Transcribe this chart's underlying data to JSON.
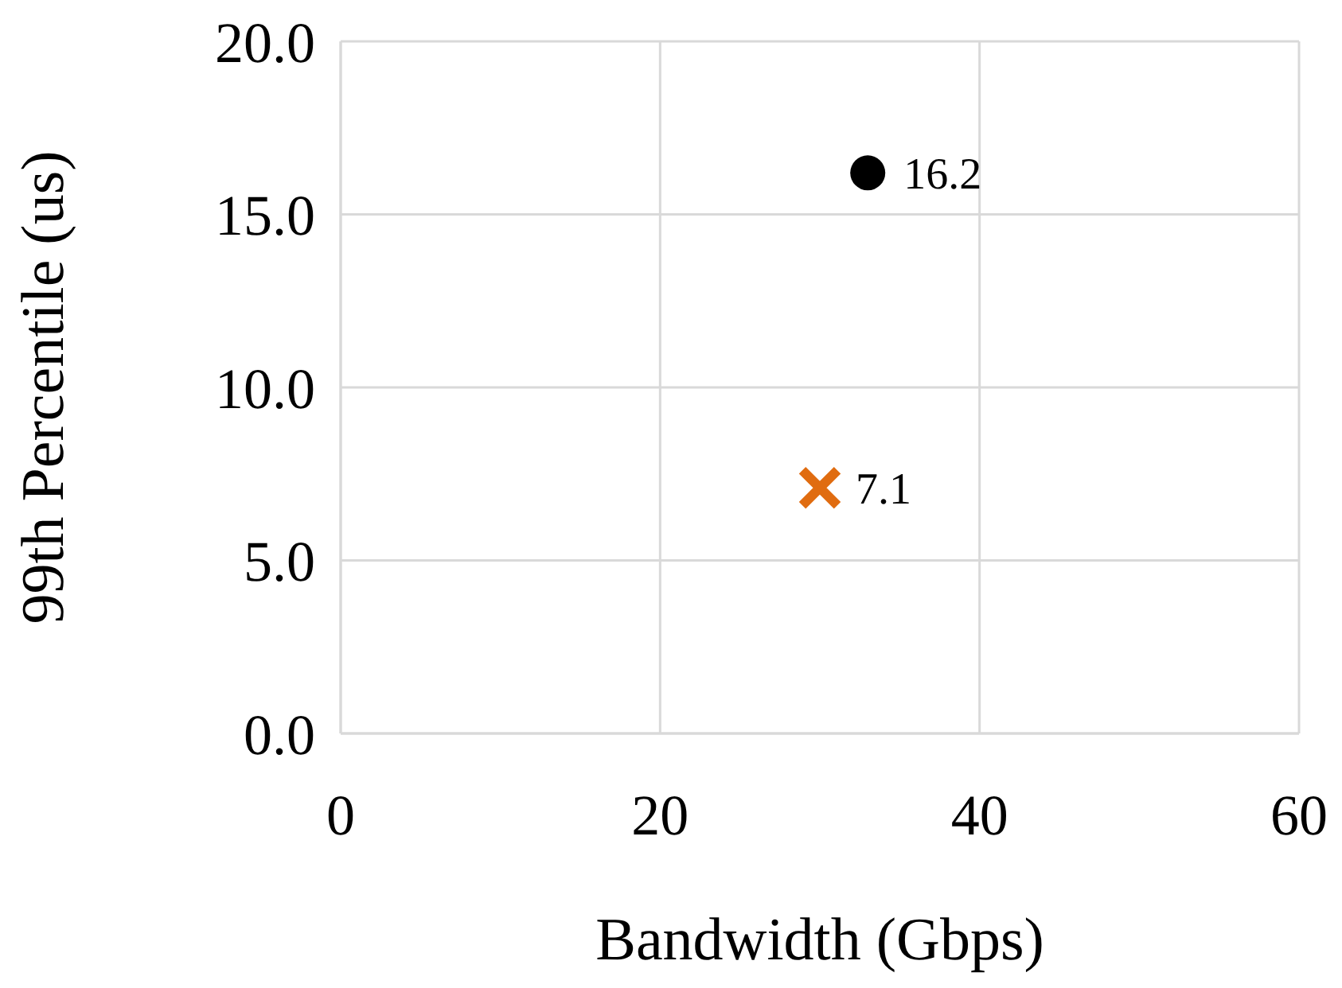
{
  "chart_data": {
    "type": "scatter",
    "xlabel": "Bandwidth (Gbps)",
    "ylabel": "99th Percentile (us)",
    "series": [
      {
        "color": "#000000",
        "marker": "circle",
        "x": [
          33
        ],
        "values": [
          16.2
        ]
      },
      {
        "color": "#e06c10",
        "marker": "cross",
        "x": [
          30
        ],
        "values": [
          7.1
        ]
      }
    ],
    "xlim": [
      0,
      60
    ],
    "xticks": [
      0,
      20,
      40,
      60
    ],
    "ylim": [
      0,
      20
    ],
    "yticks": [
      {
        "value": 0,
        "label": "0.0"
      },
      {
        "value": 5,
        "label": "5.0"
      },
      {
        "value": 10,
        "label": "10.0"
      },
      {
        "value": 15,
        "label": "15.0"
      },
      {
        "value": 20,
        "label": "20.0"
      }
    ],
    "grid": true,
    "data_labels": true
  }
}
